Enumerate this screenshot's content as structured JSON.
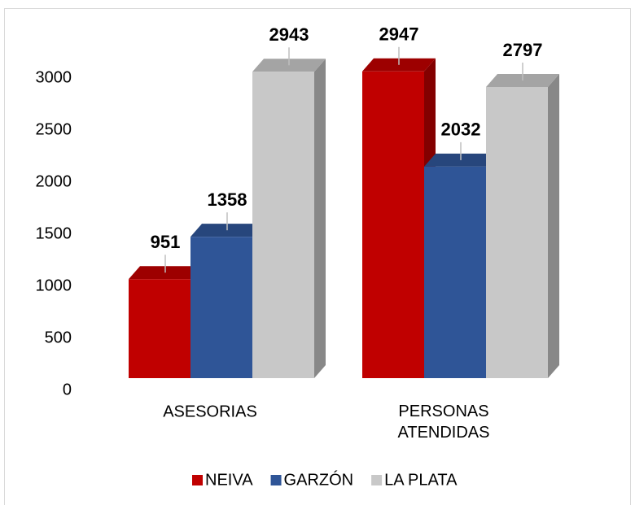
{
  "chart_data": {
    "type": "bar3d",
    "categories": [
      "ASESORIAS",
      "PERSONAS ATENDIDAS"
    ],
    "series": [
      {
        "name": "NEIVA",
        "color": "#c00000",
        "values": [
          951,
          2947
        ]
      },
      {
        "name": "GARZÓN",
        "color": "#2f5597",
        "values": [
          1358,
          2032
        ]
      },
      {
        "name": "LA PLATA",
        "color": "#c8c8c8",
        "values": [
          2943,
          2797
        ]
      }
    ],
    "ylim": [
      0,
      3000
    ],
    "yticks": [
      0,
      500,
      1000,
      1500,
      2000,
      2500,
      3000
    ],
    "legend": "bottom"
  }
}
